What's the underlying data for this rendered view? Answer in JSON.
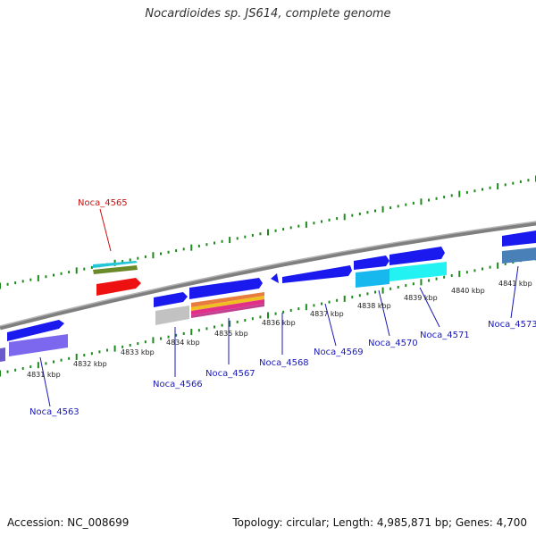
{
  "title": "Nocardioides sp. JS614, complete genome",
  "footer": {
    "accession": "Accession: NC_008699",
    "topology": "Topology: circular; Length: 4,985,871 bp; Genes: 4,700"
  },
  "colors": {
    "backbone": "#8a8a8a",
    "tick": "#1e8a1e",
    "gene_blue": "#1a1aee",
    "label_blue": "#1a1ab8",
    "label_red": "#cc1111"
  },
  "kbp_labels": [
    "4831 kbp",
    "4832 kbp",
    "4833 kbp",
    "4834 kbp",
    "4835 kbp",
    "4836 kbp",
    "4837 kbp",
    "4838 kbp",
    "4839 kbp",
    "4840 kbp",
    "4841 kbp"
  ],
  "genes": [
    {
      "name": "Noca_4563",
      "strand": "minus",
      "color": "label_blue"
    },
    {
      "name": "Noca_4565",
      "strand": "plus",
      "color": "label_red"
    },
    {
      "name": "Noca_4566",
      "strand": "minus",
      "color": "label_blue"
    },
    {
      "name": "Noca_4567",
      "strand": "minus",
      "color": "label_blue"
    },
    {
      "name": "Noca_4568",
      "strand": "minus",
      "color": "label_blue"
    },
    {
      "name": "Noca_4569",
      "strand": "minus",
      "color": "label_blue"
    },
    {
      "name": "Noca_4570",
      "strand": "minus",
      "color": "label_blue"
    },
    {
      "name": "Noca_4571",
      "strand": "minus",
      "color": "label_blue"
    },
    {
      "name": "Noca_4573",
      "strand": "minus",
      "color": "label_blue"
    }
  ]
}
